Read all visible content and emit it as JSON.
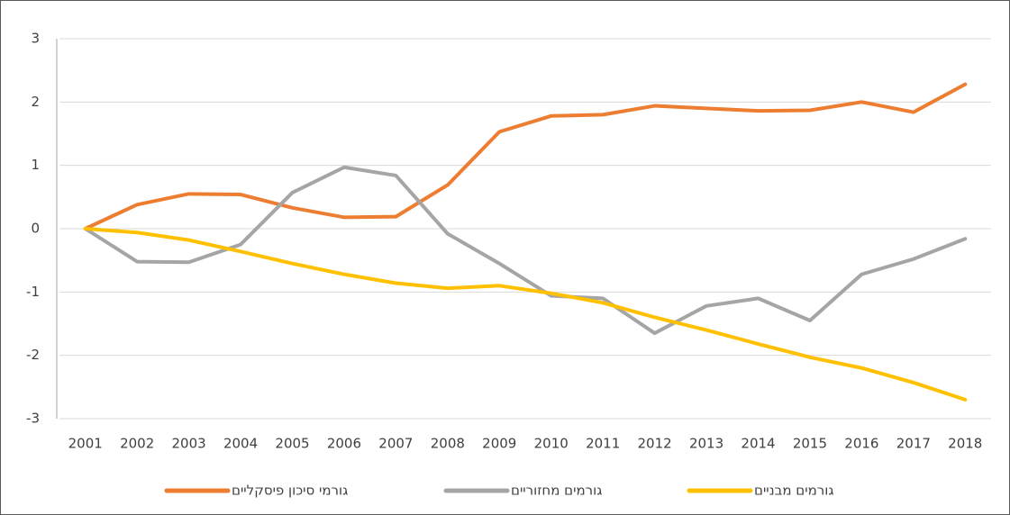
{
  "chart_data": {
    "type": "line",
    "categories": [
      "2001",
      "2002",
      "2003",
      "2004",
      "2005",
      "2006",
      "2007",
      "2008",
      "2009",
      "2010",
      "2011",
      "2012",
      "2013",
      "2014",
      "2015",
      "2016",
      "2017",
      "2018"
    ],
    "series": [
      {
        "name": "גורמי סיכון פיסקליים",
        "color": "#ed7d31",
        "values": [
          0,
          0.38,
          0.55,
          0.54,
          0.33,
          0.18,
          0.19,
          0.69,
          1.53,
          1.78,
          1.8,
          1.94,
          1.9,
          1.86,
          1.87,
          2.0,
          1.84,
          2.28
        ]
      },
      {
        "name": "גורמים מחזוריים",
        "color": "#a5a5a5",
        "values": [
          0,
          -0.52,
          -0.53,
          -0.25,
          0.57,
          0.97,
          0.84,
          -0.08,
          -0.55,
          -1.06,
          -1.1,
          -1.65,
          -1.22,
          -1.1,
          -1.45,
          -0.72,
          -0.48,
          -0.16
        ]
      },
      {
        "name": "גורמים מבניים",
        "color": "#ffc000",
        "values": [
          0,
          -0.06,
          -0.18,
          -0.36,
          -0.55,
          -0.72,
          -0.86,
          -0.94,
          -0.9,
          -1.02,
          -1.17,
          -1.4,
          -1.6,
          -1.82,
          -2.03,
          -2.2,
          -2.43,
          -2.7
        ]
      }
    ],
    "ylim": [
      -3,
      3
    ],
    "yticks": [
      -3,
      -2,
      -1,
      0,
      1,
      2,
      3
    ],
    "grid": true,
    "legend": "bottom"
  }
}
